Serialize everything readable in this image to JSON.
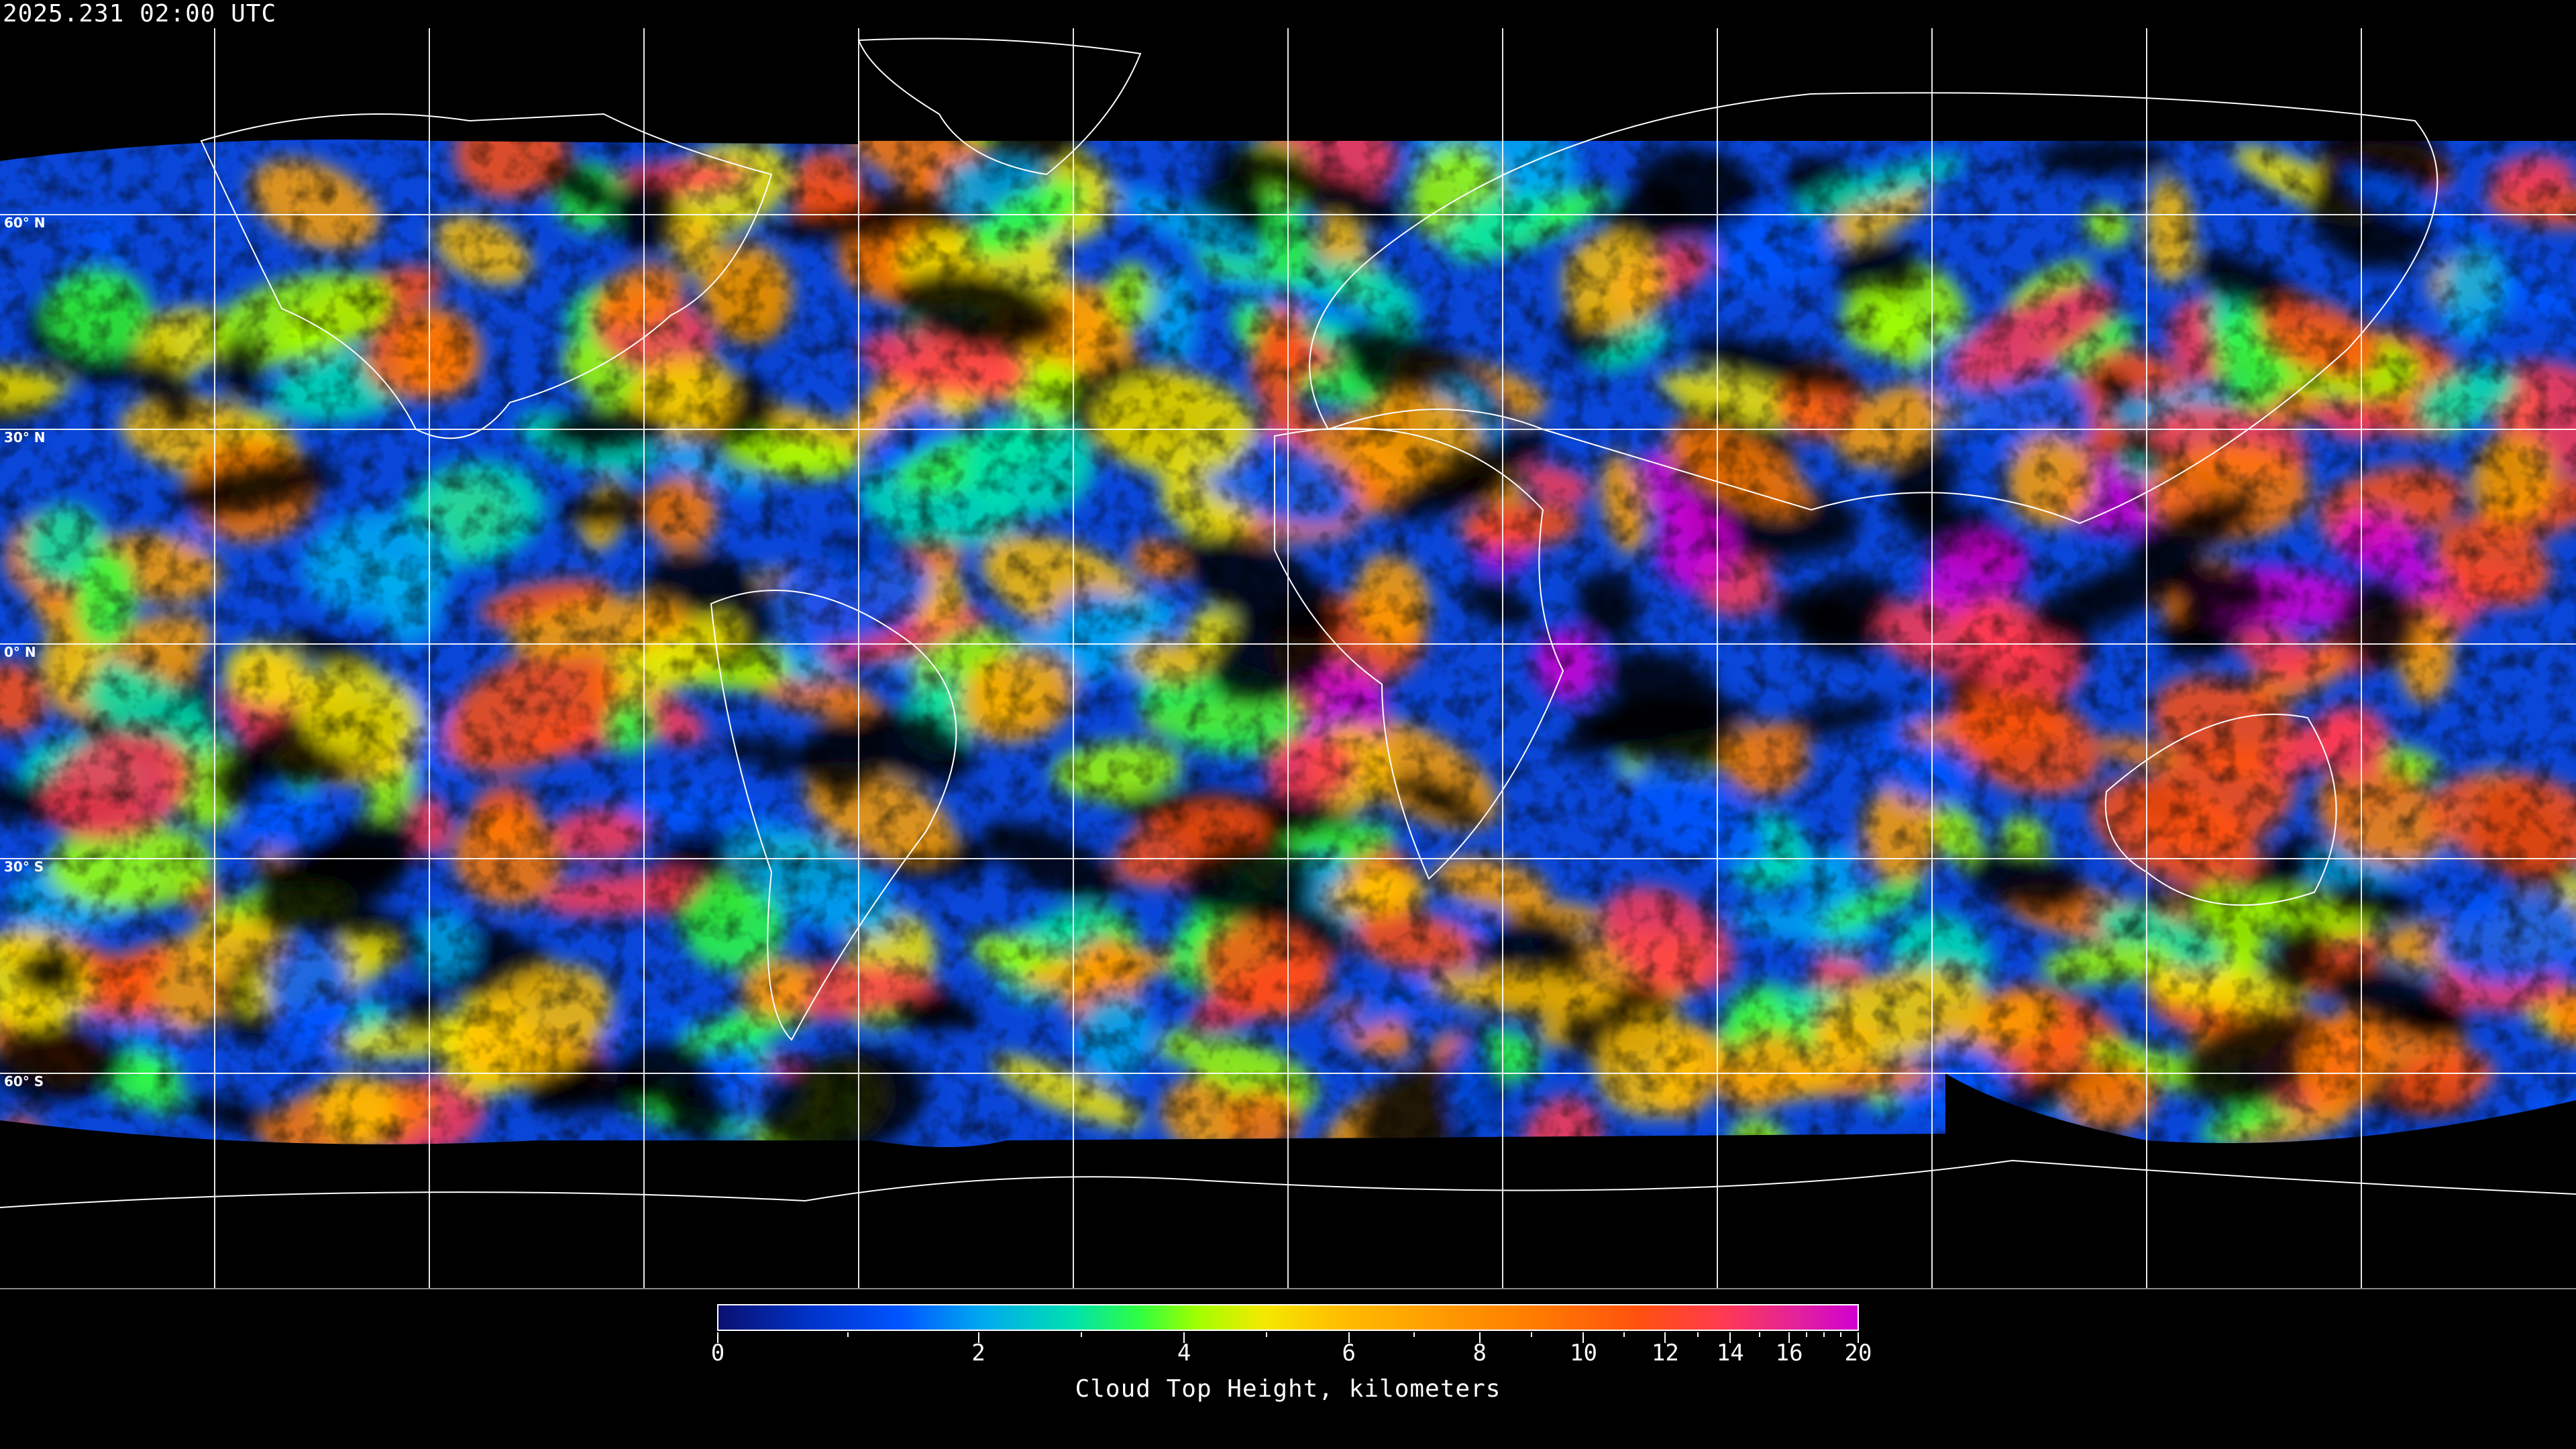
{
  "timestamp": "2025.231 02:00 UTC",
  "latitude_labels": [
    "60° N",
    "30° N",
    "0° N",
    "30° S",
    "60° S"
  ],
  "colorbar": {
    "title": "Cloud Top Height, kilometers",
    "unit": "kilometers",
    "range": [
      0,
      20
    ],
    "major_ticks": [
      "0",
      "2",
      "4",
      "6",
      "8",
      "10",
      "12",
      "14",
      "16",
      "20"
    ],
    "minor_ticks": [
      1,
      3,
      5,
      7,
      9,
      11,
      13,
      15,
      17,
      18,
      19
    ],
    "colors": [
      "#0a1070",
      "#0055ff",
      "#00a8f0",
      "#00e0b0",
      "#30ff40",
      "#a0ff00",
      "#f5e800",
      "#ffc000",
      "#ffa000",
      "#ff7a00",
      "#ff5010",
      "#ff3a50",
      "#d000d0"
    ]
  },
  "map": {
    "projection": "equirectangular",
    "graticule_spacing_degrees": 30,
    "background": "#000000",
    "graticule_color": "#ffffff",
    "coastline_color": "#ffffff"
  }
}
